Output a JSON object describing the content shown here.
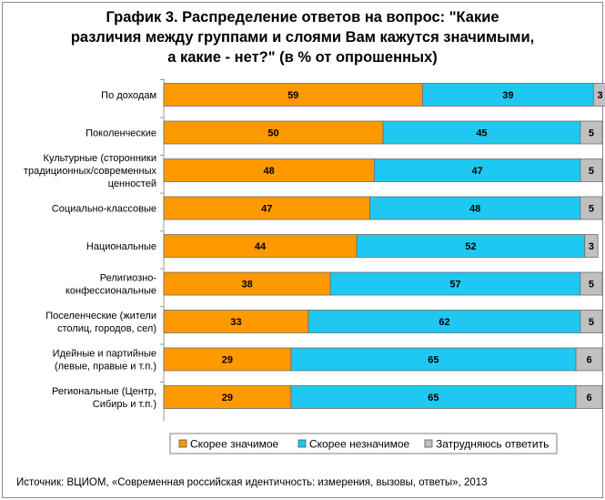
{
  "title_lines": [
    "График 3. Распределение ответов на вопрос: \"Какие",
    "различия между группами и слоями Вам кажутся значимыми,",
    "а какие - нет?\" (в % от опрошенных)"
  ],
  "source": "Источник: ВЦИОМ, «Современная российская идентичность: измерения, вызовы, ответы», 2013",
  "chart_data": {
    "type": "bar",
    "orientation": "horizontal",
    "stacked": true,
    "categories": [
      [
        "По доходам"
      ],
      [
        "Поколенческие"
      ],
      [
        "Культурные (сторонники",
        "традиционных/современных",
        "ценностей"
      ],
      [
        "Социально-классовые"
      ],
      [
        "Национальные"
      ],
      [
        "Религиозно-",
        "конфессиональные"
      ],
      [
        "Поселенческие (жители",
        "столиц, городов, сел)"
      ],
      [
        "Идейные и партийные",
        "(левые, правые и т.п.)"
      ],
      [
        "Региональные (Центр,",
        "Сибирь и т.п.)"
      ]
    ],
    "series": [
      {
        "name": "Скорее значимое",
        "color": "#ff9900",
        "values": [
          59,
          50,
          48,
          47,
          44,
          38,
          33,
          29,
          29
        ]
      },
      {
        "name": "Скорее незначимое",
        "color": "#1ec8f0",
        "values": [
          39,
          45,
          47,
          48,
          52,
          57,
          62,
          65,
          65
        ]
      },
      {
        "name": "Затрудняюсь ответить",
        "color": "#c0c0c0",
        "values": [
          3,
          5,
          5,
          5,
          3,
          5,
          5,
          6,
          6
        ]
      }
    ],
    "xlim": [
      0,
      100
    ],
    "grid": false,
    "legend_position": "bottom"
  }
}
